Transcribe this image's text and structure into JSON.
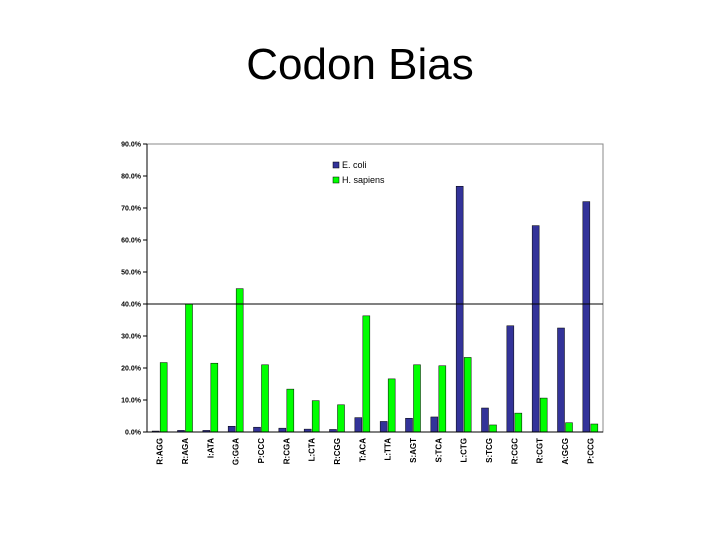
{
  "slide": {
    "title": "Codon Bias"
  },
  "chart_data": {
    "type": "bar",
    "title": "",
    "xlabel": "",
    "ylabel": "",
    "ylim": [
      0,
      90
    ],
    "y_ticks": [
      "0.0%",
      "10.0%",
      "20.0%",
      "30.0%",
      "40.0%",
      "50.0%",
      "60.0%",
      "70.0%",
      "80.0%",
      "90.0%"
    ],
    "reference_line": 40,
    "grid": false,
    "legend_position": "top-center",
    "categories": [
      "R:AGG",
      "R:AGA",
      "I:ATA",
      "G:GGA",
      "P:CCC",
      "R:CGA",
      "L:CTA",
      "R:CGG",
      "T:ACA",
      "L:TTA",
      "S:AGT",
      "S:TCA",
      "L:CTG",
      "S:TCG",
      "R:CGC",
      "R:CGT",
      "A:GCG",
      "P:CCG"
    ],
    "series": [
      {
        "name": "E. coli",
        "color": "#333399",
        "values": [
          0.3,
          0.5,
          0.5,
          1.8,
          1.5,
          1.2,
          0.9,
          0.8,
          4.5,
          3.3,
          4.3,
          4.7,
          76.8,
          7.5,
          33.2,
          64.5,
          32.5,
          72.0
        ]
      },
      {
        "name": "H. sapiens",
        "color": "#00ff00",
        "values": [
          21.7,
          40.0,
          21.5,
          44.8,
          21.0,
          13.4,
          9.8,
          8.5,
          36.3,
          16.6,
          21.0,
          20.7,
          23.3,
          2.2,
          5.9,
          10.6,
          2.9,
          2.5
        ]
      }
    ]
  }
}
